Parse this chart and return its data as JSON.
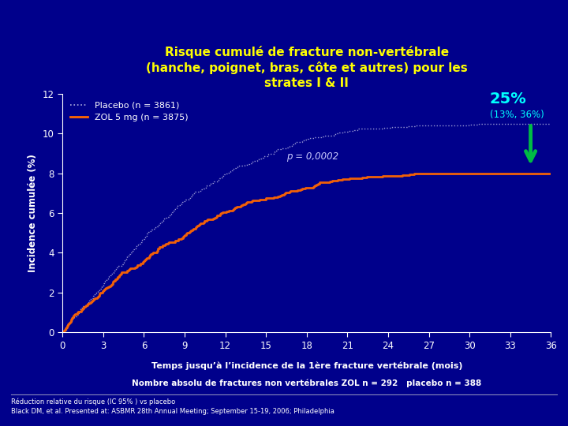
{
  "title_line1": "Risque cumulé de fracture non-vertébrale",
  "title_line2": "(hanche, poignet, bras, côte et autres) pour les",
  "title_line3": "strates I & II",
  "title_color": "#FFFF00",
  "background_color": "#00008B",
  "plot_bg_color": "#0000AA",
  "xlabel": "Temps jusqu’à l’incidence de la 1ère fracture vertébrale (mois)",
  "xlabel2": "Nombre absolu de fractures non vertébrales ZOL n = 292   placebo n = 388",
  "ylabel": "Incidence cumulée (%)",
  "footnote1": "Réduction relative du risque (IC 95% ) vs placebo",
  "footnote2": "Black DM, et al. Presented at: ASBMR 28th Annual Meeting; September 15-19, 2006; Philadelphia",
  "xlim": [
    0,
    36
  ],
  "ylim": [
    0,
    12
  ],
  "xticks": [
    0,
    3,
    6,
    9,
    12,
    15,
    18,
    21,
    24,
    27,
    30,
    33,
    36
  ],
  "yticks": [
    0,
    2,
    4,
    6,
    8,
    10,
    12
  ],
  "placebo_label": "Placebo (n = 3861)",
  "zol_label": "ZOL 5 mg (n = 3875)",
  "placebo_color": "#AAAADD",
  "zol_color": "#FF6600",
  "pvalue_text": "p = 0,0002",
  "pvalue_color": "#CCCCFF",
  "annotation_25": "25%",
  "annotation_ci": "(13%, 36%)",
  "annotation_color": "#00FFFF",
  "ci_color": "#00FFFF",
  "arrow_color": "#00BB44",
  "tick_color": "#FFFFFF",
  "axis_color": "#FFFFFF",
  "label_color": "#FFFFFF",
  "placebo_end": 10.5,
  "zol_end": 8.0
}
